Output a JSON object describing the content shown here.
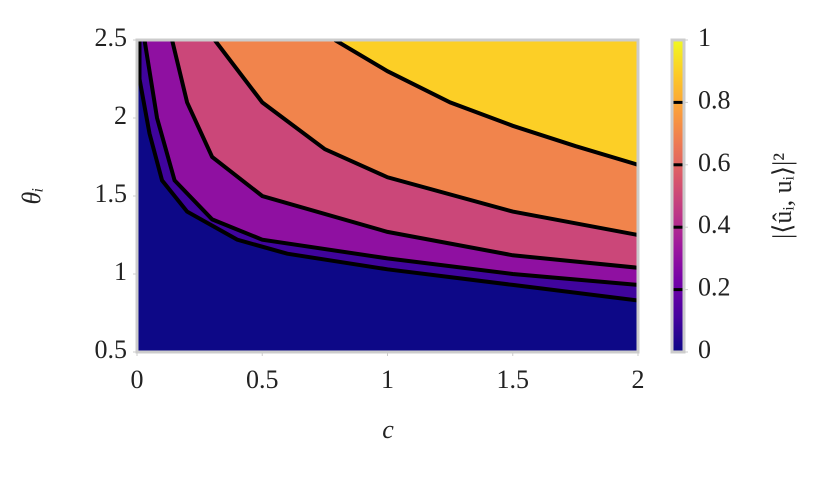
{
  "chart_data": {
    "type": "contour",
    "xlabel": "c",
    "ylabel": "θᵢ",
    "colorbar_label": "|⟨ûᵢ, uᵢ⟩|²",
    "xlim": [
      0,
      2
    ],
    "ylim": [
      0.5,
      2.5
    ],
    "xticks": [
      0,
      0.5,
      1,
      1.5,
      2
    ],
    "yticks": [
      0.5,
      1,
      1.5,
      2,
      2.5
    ],
    "clim": [
      0,
      1
    ],
    "cticks": [
      0,
      0.2,
      0.4,
      0.6,
      0.8,
      1
    ],
    "colormap": [
      "#0d0887",
      "#46039f",
      "#7201a8",
      "#9c179e",
      "#bd3786",
      "#d8576b",
      "#ed7953",
      "#fb9f3a",
      "#fdca26",
      "#f0f921"
    ],
    "line_color": "#000000",
    "series": [
      {
        "level": 0,
        "x": [
          0.01,
          0.01,
          0.05,
          0.1,
          0.2,
          0.4,
          0.6,
          1.0,
          1.5,
          2.0
        ],
        "y": [
          2.5,
          2.25,
          1.9,
          1.6,
          1.4,
          1.22,
          1.13,
          1.03,
          0.93,
          0.83
        ]
      },
      {
        "level": 0.2,
        "x": [
          0.03,
          0.08,
          0.15,
          0.3,
          0.5,
          1.0,
          1.5,
          2.0
        ],
        "y": [
          2.5,
          2.0,
          1.6,
          1.35,
          1.22,
          1.1,
          1.0,
          0.93
        ]
      },
      {
        "level": 0.4,
        "x": [
          0.14,
          0.2,
          0.3,
          0.5,
          1.0,
          1.5,
          2.0
        ],
        "y": [
          2.5,
          2.1,
          1.75,
          1.5,
          1.27,
          1.12,
          1.04
        ]
      },
      {
        "level": 0.6,
        "x": [
          0.31,
          0.5,
          0.75,
          1.0,
          1.5,
          2.0
        ],
        "y": [
          2.5,
          2.1,
          1.8,
          1.62,
          1.4,
          1.25
        ]
      },
      {
        "level": 0.8,
        "x": [
          0.79,
          1.0,
          1.25,
          1.5,
          1.75,
          2.0
        ],
        "y": [
          2.5,
          2.3,
          2.1,
          1.95,
          1.82,
          1.7
        ]
      }
    ]
  }
}
